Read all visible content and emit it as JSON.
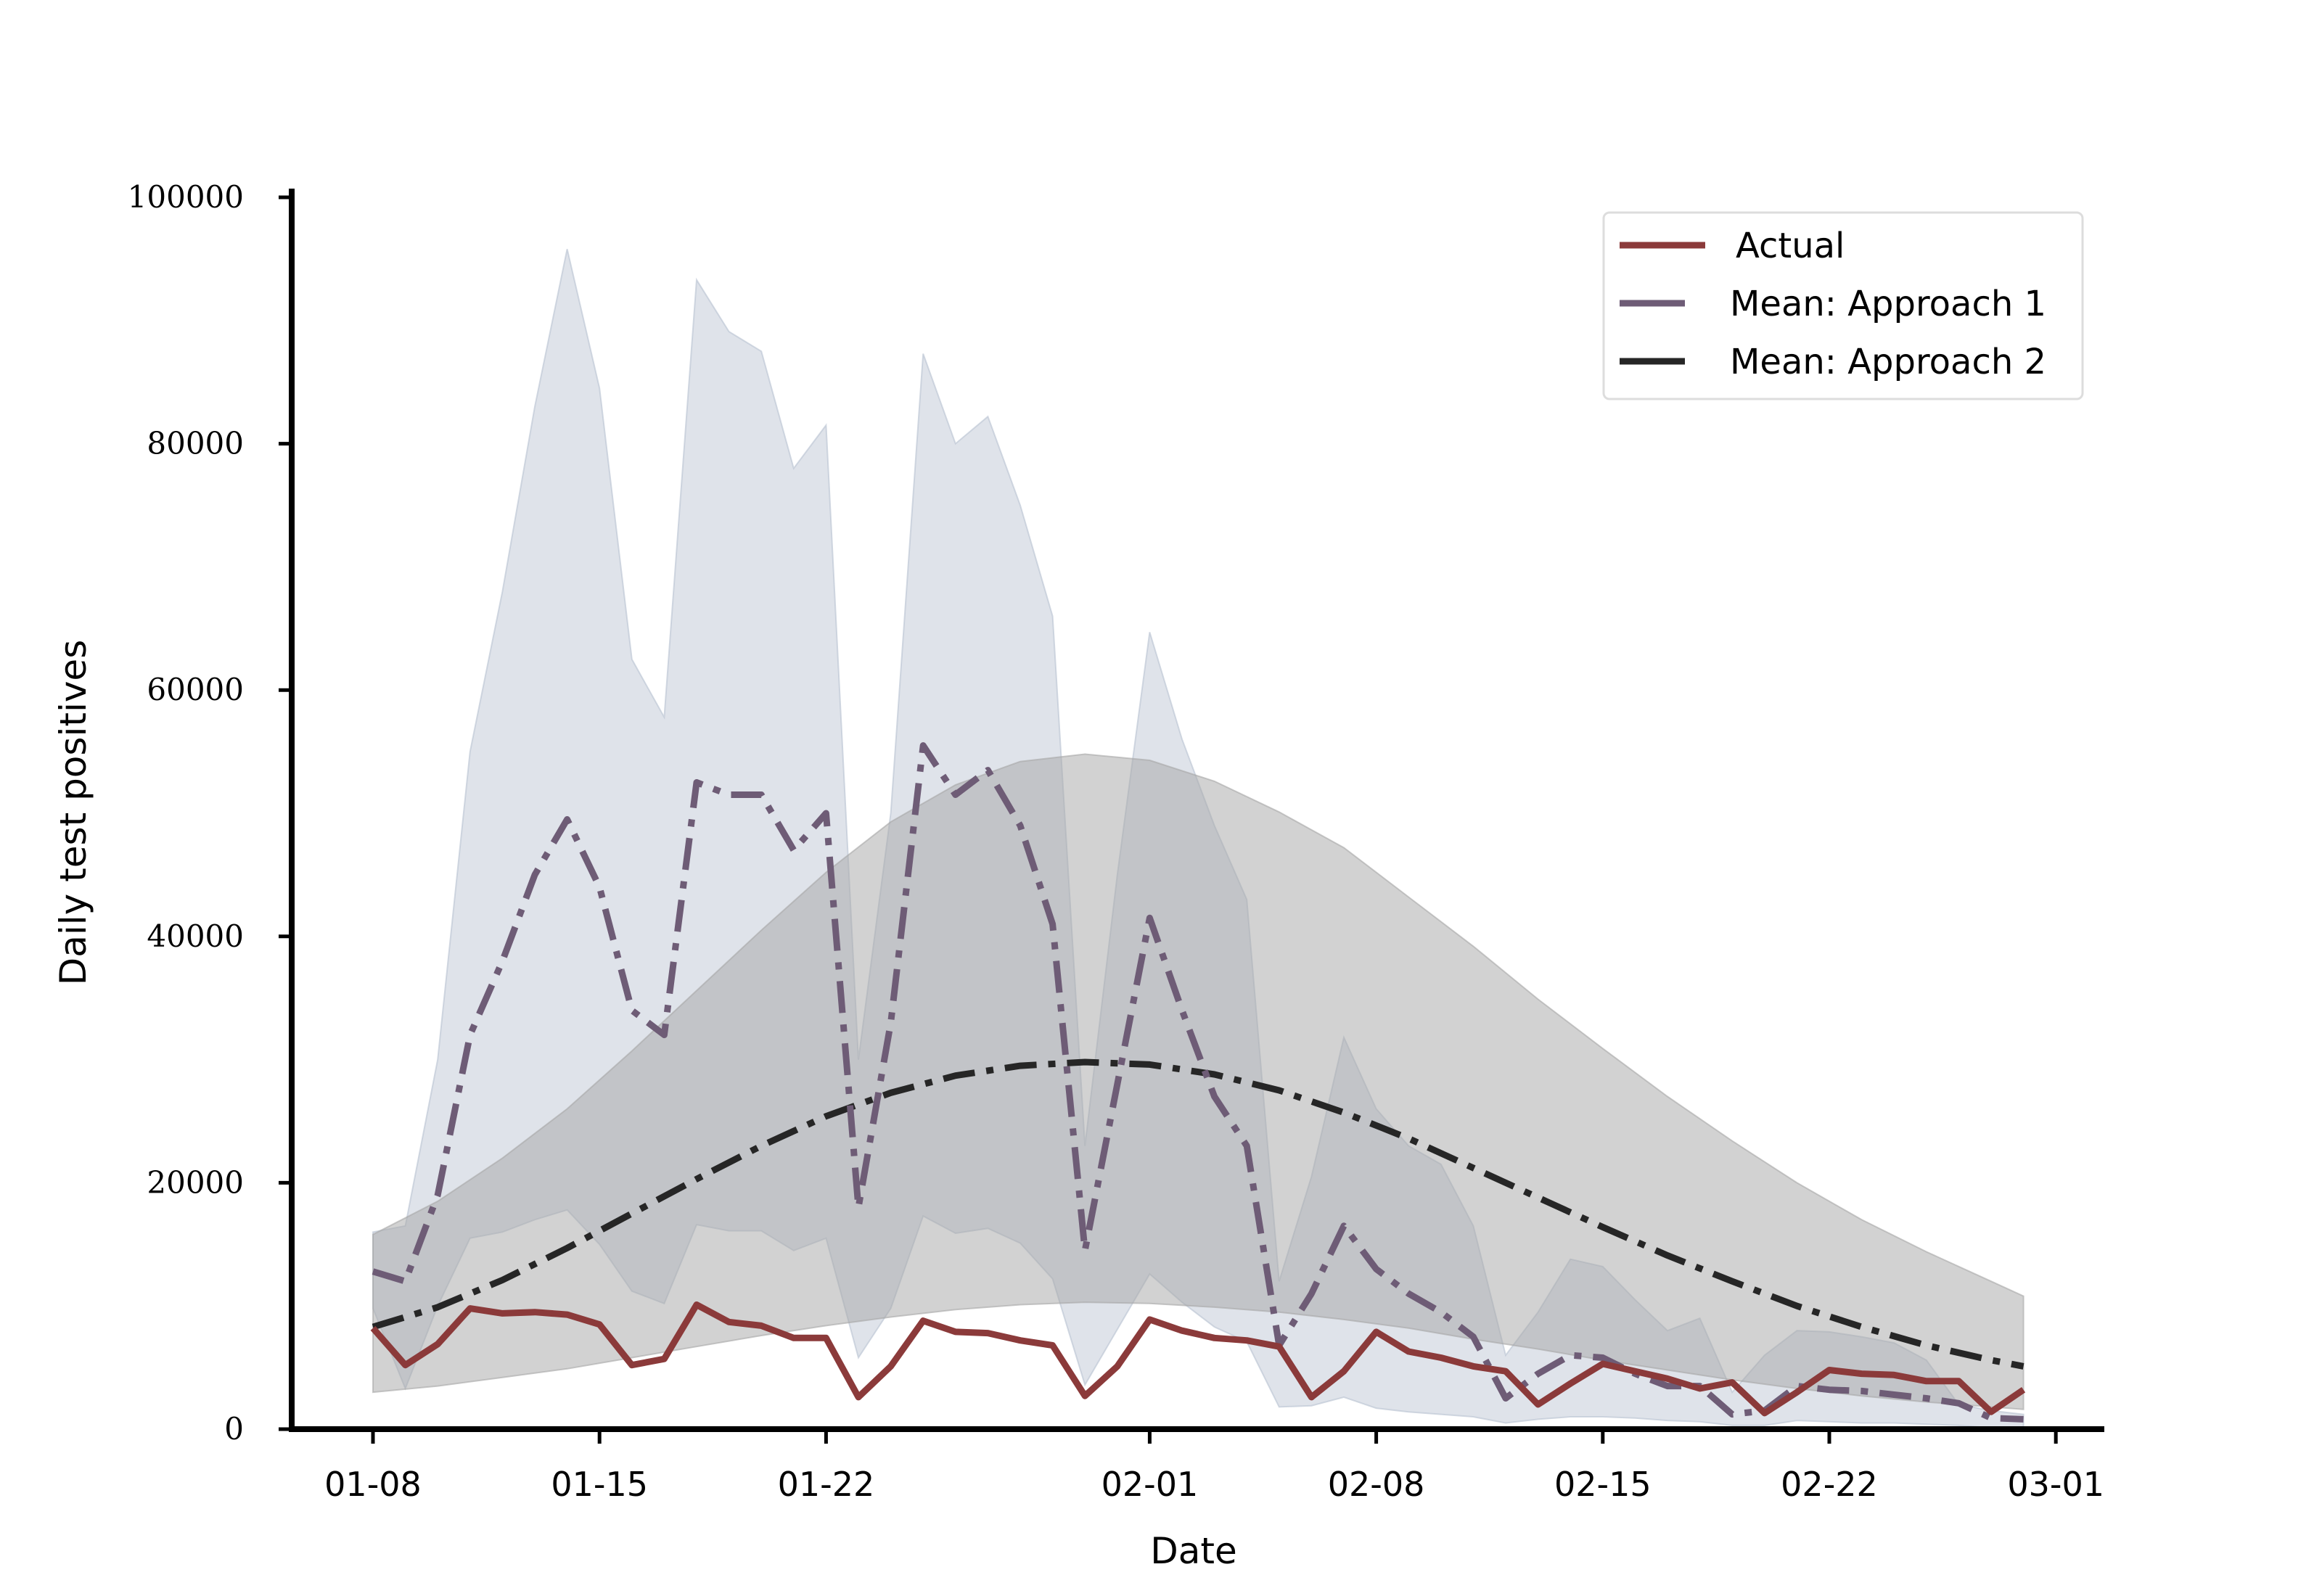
{
  "chart_data": {
    "type": "line",
    "xlabel": "Date",
    "ylabel": "Daily test positives",
    "ylim": [
      0,
      100000
    ],
    "xlim_days": [
      -1,
      52
    ],
    "yticks": [
      0,
      20000,
      40000,
      60000,
      80000,
      100000
    ],
    "xticks": [
      {
        "day": 0,
        "label": "01-08"
      },
      {
        "day": 7,
        "label": "01-15"
      },
      {
        "day": 14,
        "label": "01-22"
      },
      {
        "day": 24,
        "label": "02-01"
      },
      {
        "day": 31,
        "label": "02-08"
      },
      {
        "day": 38,
        "label": "02-15"
      },
      {
        "day": 45,
        "label": "02-22"
      },
      {
        "day": 52,
        "label": "03-01"
      }
    ],
    "x_start_date": "01-08",
    "legend_position": "top-right",
    "legend": [
      "Actual",
      "Mean: Approach 1",
      "Mean: Approach 2"
    ],
    "series": [
      {
        "name": "Actual",
        "color": "#8b3a3a",
        "style": "solid",
        "x": [
          0,
          1,
          2,
          3,
          4,
          5,
          6,
          7,
          8,
          9,
          10,
          11,
          12,
          13,
          14,
          15,
          16,
          17,
          18,
          19,
          20,
          21,
          22,
          23,
          24,
          25,
          26,
          27,
          28,
          29,
          30,
          31,
          32,
          33,
          34,
          35,
          36,
          37,
          38,
          39,
          40,
          41,
          42,
          43,
          44,
          45,
          46,
          47,
          48,
          49,
          50,
          51
        ],
        "values": [
          8200,
          5200,
          6900,
          9800,
          9400,
          9500,
          9300,
          8500,
          5200,
          5700,
          10100,
          8700,
          8400,
          7400,
          7400,
          2600,
          5100,
          8800,
          7900,
          7800,
          7200,
          6800,
          2700,
          5100,
          8900,
          8000,
          7400,
          7200,
          6700,
          2600,
          4700,
          7900,
          6300,
          5800,
          5100,
          4700,
          2000,
          3700,
          5300,
          4700,
          4100,
          3300,
          3800,
          1300,
          3000,
          4800,
          4500,
          4400,
          3900,
          3900,
          1400,
          3200
        ]
      },
      {
        "name": "Mean: Approach 1",
        "color": "#6e5c76",
        "style": "dashdot",
        "x": [
          0,
          1,
          2,
          3,
          4,
          5,
          6,
          7,
          8,
          9,
          10,
          11,
          12,
          13,
          14,
          15,
          16,
          17,
          18,
          19,
          20,
          21,
          22,
          23,
          24,
          25,
          26,
          27,
          28,
          29,
          30,
          31,
          32,
          33,
          34,
          35,
          36,
          37,
          38,
          39,
          40,
          41,
          42,
          43,
          44,
          45,
          46,
          47,
          48,
          49,
          50,
          51
        ],
        "values": [
          12800,
          12000,
          19000,
          32000,
          38000,
          45000,
          49500,
          44000,
          34000,
          32000,
          52500,
          51500,
          51500,
          47000,
          50000,
          18000,
          33000,
          55500,
          51500,
          53500,
          49000,
          41000,
          14500,
          28000,
          41500,
          34000,
          27000,
          23000,
          6800,
          11000,
          16500,
          13000,
          11000,
          9500,
          7500,
          2500,
          4500,
          6000,
          5800,
          4500,
          3500,
          3500,
          1200,
          1500,
          3500,
          3200,
          3100,
          2800,
          2500,
          2100,
          900,
          800
        ]
      },
      {
        "name": "Mean: Approach 2",
        "color": "#262626",
        "style": "dashdot",
        "x": [
          0,
          2,
          4,
          6,
          8,
          10,
          12,
          14,
          16,
          18,
          20,
          22,
          24,
          26,
          28,
          30,
          32,
          34,
          36,
          38,
          40,
          42,
          44,
          46,
          48,
          50,
          51
        ],
        "values": [
          8300,
          9900,
          12100,
          14700,
          17500,
          20300,
          23000,
          25400,
          27300,
          28700,
          29500,
          29800,
          29600,
          28800,
          27500,
          25700,
          23600,
          21200,
          18800,
          16400,
          14100,
          12000,
          10000,
          8300,
          6800,
          5600,
          5100
        ]
      }
    ],
    "bands": [
      {
        "name": "Approach 1 interval",
        "color": "#b8c2d0",
        "x": [
          0,
          1,
          2,
          3,
          4,
          5,
          6,
          7,
          8,
          9,
          10,
          11,
          12,
          13,
          14,
          15,
          16,
          17,
          18,
          19,
          20,
          21,
          22,
          23,
          24,
          25,
          26,
          27,
          28,
          29,
          30,
          31,
          32,
          33,
          34,
          35,
          36,
          37,
          38,
          39,
          40,
          41,
          42,
          43,
          44,
          45,
          46,
          47,
          48,
          49,
          50,
          51
        ],
        "lower": [
          9800,
          3300,
          10000,
          15500,
          16000,
          17000,
          17800,
          15000,
          11200,
          10200,
          16600,
          16100,
          16100,
          14500,
          15500,
          5800,
          9800,
          17300,
          15900,
          16300,
          15100,
          12200,
          3600,
          8100,
          12600,
          10300,
          8300,
          7100,
          1800,
          1900,
          2600,
          1700,
          1400,
          1200,
          1000,
          500,
          800,
          1000,
          1000,
          900,
          700,
          600,
          300,
          300,
          700,
          600,
          500,
          500,
          400,
          300,
          100,
          100
        ],
        "upper": [
          16000,
          16500,
          30000,
          55000,
          68000,
          83000,
          95800,
          84500,
          62500,
          57800,
          93300,
          89100,
          87500,
          78000,
          81500,
          30000,
          50000,
          87300,
          80000,
          82200,
          75000,
          66000,
          23000,
          45000,
          64700,
          56000,
          49000,
          43000,
          12000,
          20500,
          31800,
          26000,
          23000,
          21500,
          16500,
          6000,
          9500,
          13800,
          13200,
          10500,
          8000,
          9000,
          3000,
          6000,
          8000,
          7900,
          7500,
          7000,
          5600,
          2000,
          1500,
          1200
        ]
      },
      {
        "name": "Approach 2 interval",
        "color": "#a6a6a6",
        "x": [
          0,
          2,
          4,
          6,
          8,
          10,
          12,
          14,
          16,
          18,
          20,
          22,
          24,
          26,
          28,
          30,
          32,
          34,
          36,
          38,
          40,
          42,
          44,
          46,
          48,
          50,
          51
        ],
        "lower": [
          3000,
          3500,
          4200,
          4900,
          5800,
          6700,
          7600,
          8400,
          9100,
          9700,
          10100,
          10300,
          10200,
          9900,
          9500,
          8900,
          8200,
          7300,
          6500,
          5600,
          4800,
          4000,
          3300,
          2700,
          2200,
          1800,
          1600
        ],
        "upper": [
          15800,
          18500,
          22000,
          26000,
          30700,
          35600,
          40500,
          45200,
          49300,
          52300,
          54200,
          54800,
          54300,
          52600,
          50100,
          47200,
          43200,
          39200,
          34900,
          30900,
          27000,
          23400,
          20000,
          17000,
          14400,
          12000,
          10800
        ]
      }
    ]
  }
}
